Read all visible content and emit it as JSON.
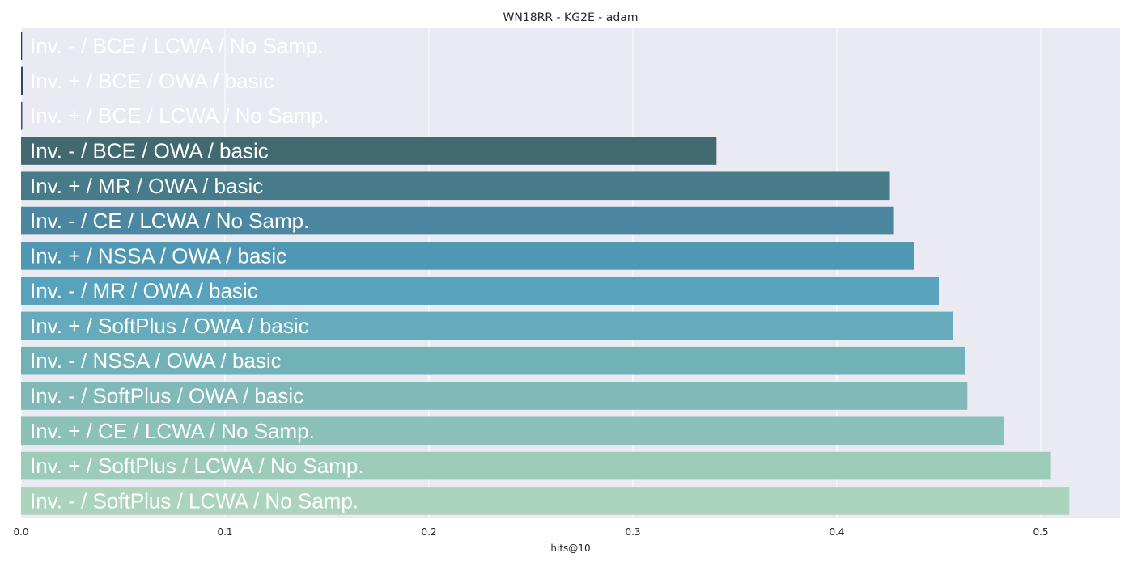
{
  "chart_data": {
    "type": "bar",
    "orientation": "horizontal",
    "title": "WN18RR - KG2E - adam",
    "xlabel": "hits@10",
    "ylabel": "",
    "xlim": [
      0,
      0.54
    ],
    "xticks": [
      "0.0",
      "0.1",
      "0.2",
      "0.3",
      "0.4",
      "0.5"
    ],
    "grid": true,
    "categories": [
      "Inv. - / BCE / LCWA / No Samp.",
      "Inv. + / BCE / OWA / basic",
      "Inv. + / BCE / LCWA / No Samp.",
      "Inv. - / BCE / OWA / basic",
      "Inv. + / MR / OWA / basic",
      "Inv. - / CE / LCWA / No Samp.",
      "Inv. + / NSSA / OWA / basic",
      "Inv. - / MR / OWA / basic",
      "Inv. + / SoftPlus / OWA / basic",
      "Inv. - / NSSA / OWA / basic",
      "Inv. - / SoftPlus / OWA / basic",
      "Inv. + / CE / LCWA / No Samp.",
      "Inv. + / SoftPlus / LCWA / No Samp.",
      "Inv. - / SoftPlus / LCWA / No Samp."
    ],
    "values": [
      0.0005,
      0.0008,
      0.0006,
      0.341,
      0.426,
      0.428,
      0.438,
      0.45,
      0.457,
      0.463,
      0.464,
      0.482,
      0.505,
      0.514
    ],
    "colors": [
      "#2b3d4a",
      "#30495a",
      "#365565",
      "#42696f",
      "#477b8a",
      "#4b87a0",
      "#4f97b2",
      "#58a2bd",
      "#66abbb",
      "#71b1b8",
      "#80b9b7",
      "#8cc1b7",
      "#9ccbb9",
      "#acd4bc"
    ]
  }
}
